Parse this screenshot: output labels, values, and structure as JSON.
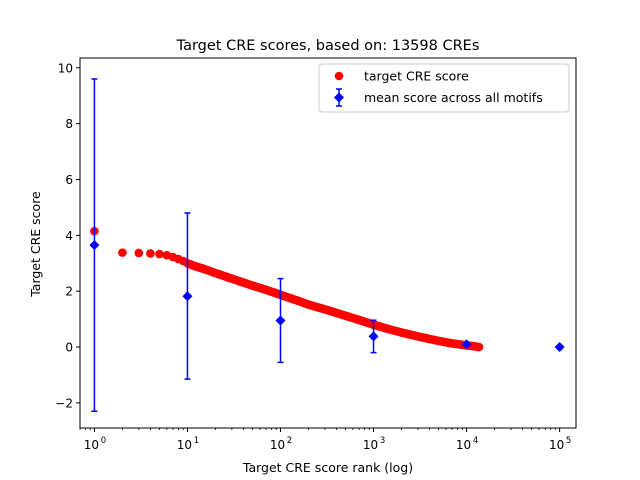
{
  "chart_data": {
    "type": "scatter",
    "title": "Target CRE scores, based on: 13598 CREs",
    "xlabel": "Target CRE score rank (log)",
    "ylabel": "Target CRE score",
    "xscale": "log",
    "xlim": [
      0.7,
      150000
    ],
    "ylim": [
      -2.9,
      10.35
    ],
    "xticks": [
      {
        "value": 1,
        "base": "10",
        "exp": "0"
      },
      {
        "value": 10,
        "base": "10",
        "exp": "1"
      },
      {
        "value": 100,
        "base": "10",
        "exp": "2"
      },
      {
        "value": 1000,
        "base": "10",
        "exp": "3"
      },
      {
        "value": 10000,
        "base": "10",
        "exp": "4"
      },
      {
        "value": 100000,
        "base": "10",
        "exp": "5"
      }
    ],
    "yticks": [
      {
        "value": -2,
        "label": "−2"
      },
      {
        "value": 0,
        "label": "0"
      },
      {
        "value": 2,
        "label": "2"
      },
      {
        "value": 4,
        "label": "4"
      },
      {
        "value": 6,
        "label": "6"
      },
      {
        "value": 8,
        "label": "8"
      },
      {
        "value": 10,
        "label": "10"
      }
    ],
    "legend": {
      "placement": "upper right",
      "entries": [
        {
          "label": "target CRE score",
          "marker": "circle",
          "color": "#ff0000"
        },
        {
          "label": "mean score across all motifs",
          "marker": "diamond-errorbar",
          "color": "#0000ff"
        }
      ]
    },
    "series": [
      {
        "name": "target CRE score",
        "color": "#ff0000",
        "marker": "circle",
        "points": [
          [
            1,
            4.15
          ],
          [
            2,
            3.38
          ],
          [
            3,
            3.37
          ],
          [
            4,
            3.35
          ],
          [
            5,
            3.33
          ],
          [
            6,
            3.29
          ],
          [
            7,
            3.22
          ],
          [
            8,
            3.15
          ],
          [
            9,
            3.08
          ],
          [
            10,
            3.0
          ],
          [
            12,
            2.9
          ],
          [
            15,
            2.8
          ],
          [
            20,
            2.65
          ],
          [
            30,
            2.45
          ],
          [
            50,
            2.2
          ],
          [
            70,
            2.05
          ],
          [
            100,
            1.87
          ],
          [
            150,
            1.67
          ],
          [
            200,
            1.52
          ],
          [
            300,
            1.35
          ],
          [
            500,
            1.12
          ],
          [
            700,
            0.97
          ],
          [
            1000,
            0.8
          ],
          [
            1500,
            0.63
          ],
          [
            2000,
            0.52
          ],
          [
            3000,
            0.38
          ],
          [
            5000,
            0.22
          ],
          [
            7000,
            0.13
          ],
          [
            10000,
            0.06
          ],
          [
            12000,
            0.03
          ],
          [
            13598,
            0.0
          ]
        ]
      },
      {
        "name": "mean score across all motifs",
        "color": "#0000ff",
        "marker": "diamond",
        "points": [
          {
            "x": 1,
            "y": 3.65,
            "lo": -2.3,
            "hi": 9.6
          },
          {
            "x": 10,
            "y": 1.82,
            "lo": -1.15,
            "hi": 4.8
          },
          {
            "x": 100,
            "y": 0.95,
            "lo": -0.55,
            "hi": 2.45
          },
          {
            "x": 1000,
            "y": 0.38,
            "lo": -0.2,
            "hi": 0.96
          },
          {
            "x": 10000,
            "y": 0.1,
            "lo": 0.05,
            "hi": 0.15
          },
          {
            "x": 100000,
            "y": 0.0,
            "lo": 0.0,
            "hi": 0.0
          }
        ]
      }
    ]
  }
}
